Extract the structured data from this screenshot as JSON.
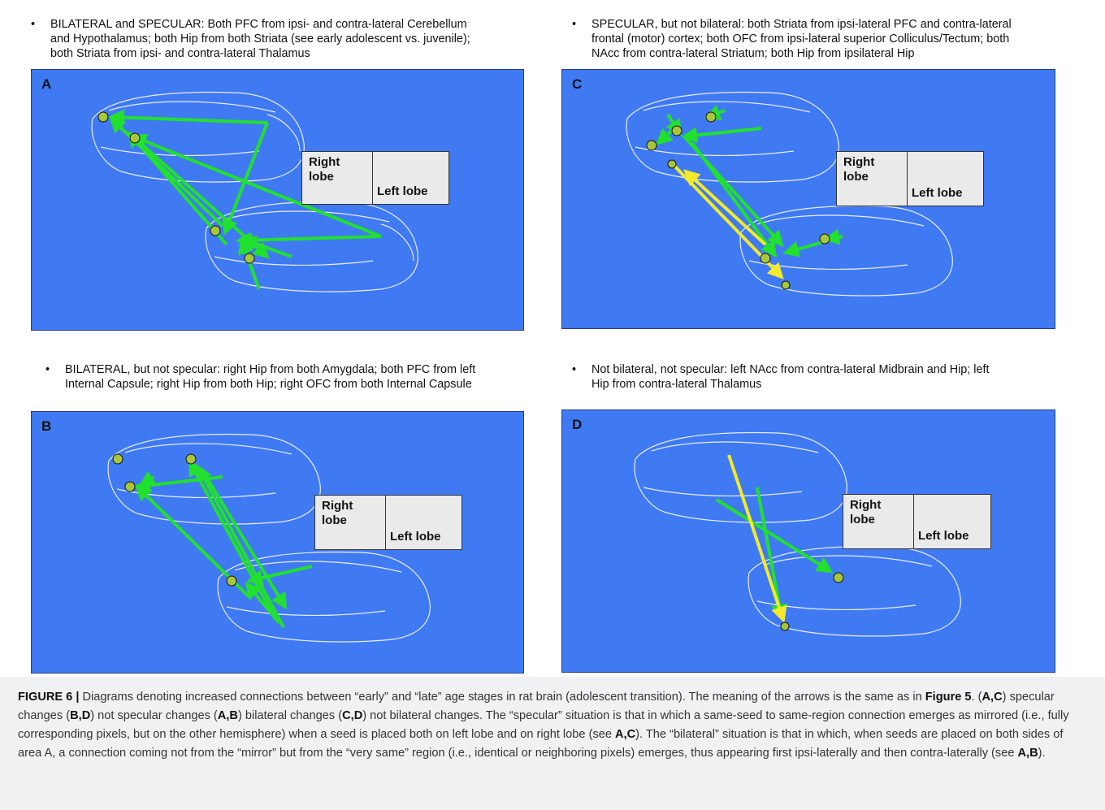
{
  "bullets": {
    "a": "BILATERAL and SPECULAR: Both PFC from ipsi- and contra-lateral Cerebellum\nand Hypothalamus; both Hip from both Striata (see early adolescent vs. juvenile);\nboth Striata from ipsi- and contra-lateral Thalamus",
    "c": "SPECULAR, but not bilateral: both Striata from ipsi-lateral PFC and contra-lateral\nfrontal (motor) cortex; both OFC from ipsi-lateral superior Colliculus/Tectum; both\nNAcc from contra-lateral Striatum; both Hip from ipsilateral Hip",
    "b": "BILATERAL, but not specular: right Hip from both Amygdala; both PFC from left\nInternal Capsule; right Hip from both Hip; right OFC from both Internal Capsule",
    "d": "Not bilateral, not specular: left NAcc from contra-lateral Midbrain and Hip; left\nHip from contra-lateral Thalamus",
    "marker": "•"
  },
  "panels": {
    "a": {
      "label": "A"
    },
    "b": {
      "label": "B"
    },
    "c": {
      "label": "C"
    },
    "d": {
      "label": "D"
    }
  },
  "legend": {
    "right_lobe": "Right\nlobe",
    "left_lobe": "Left lobe"
  },
  "caption": {
    "figure_label": "FIGURE 6 |",
    "t1": " Diagrams denoting increased connections between “early” and “late” age stages in rat brain (adolescent transition). The meaning of the arrows is the same as in ",
    "fig5": "Figure 5",
    "t2": ". (",
    "ac1": "A,C",
    "t3": ") specular changes (",
    "bd1": "B,D",
    "t4": ") not specular changes (",
    "ab1": "A,B",
    "t5": ") bilateral changes (",
    "cd1": "C,D",
    "t6": ") not bilateral changes. The “specular” situation is that in which a same-seed to same-region connection emerges as mirrored (i.e., fully corresponding pixels, but on the other hemisphere) when a seed is placed both on left lobe and on right lobe (see ",
    "ac2": "A,C",
    "t7": "). The “bilateral” situation is that in which, when seeds are placed on both sides of area A, a connection coming not from the “mirror” but from the “very same” region (i.e., identical or neighboring pixels) emerges, thus appearing first ipsi-laterally and then contra-laterally (see ",
    "ab2": "A,B",
    "t8": ")."
  },
  "colors": {
    "panel_bg": "#3f7af3",
    "arrow_green": "#22e02e",
    "arrow_yellow": "#f2ea2a",
    "seed_fill": "#a8c63a",
    "outline": "#e8ecff",
    "legend_bg": "#eaeaea"
  },
  "icons": {
    "seed": "sunburst-seed-icon",
    "arrow": "connection-arrow"
  }
}
